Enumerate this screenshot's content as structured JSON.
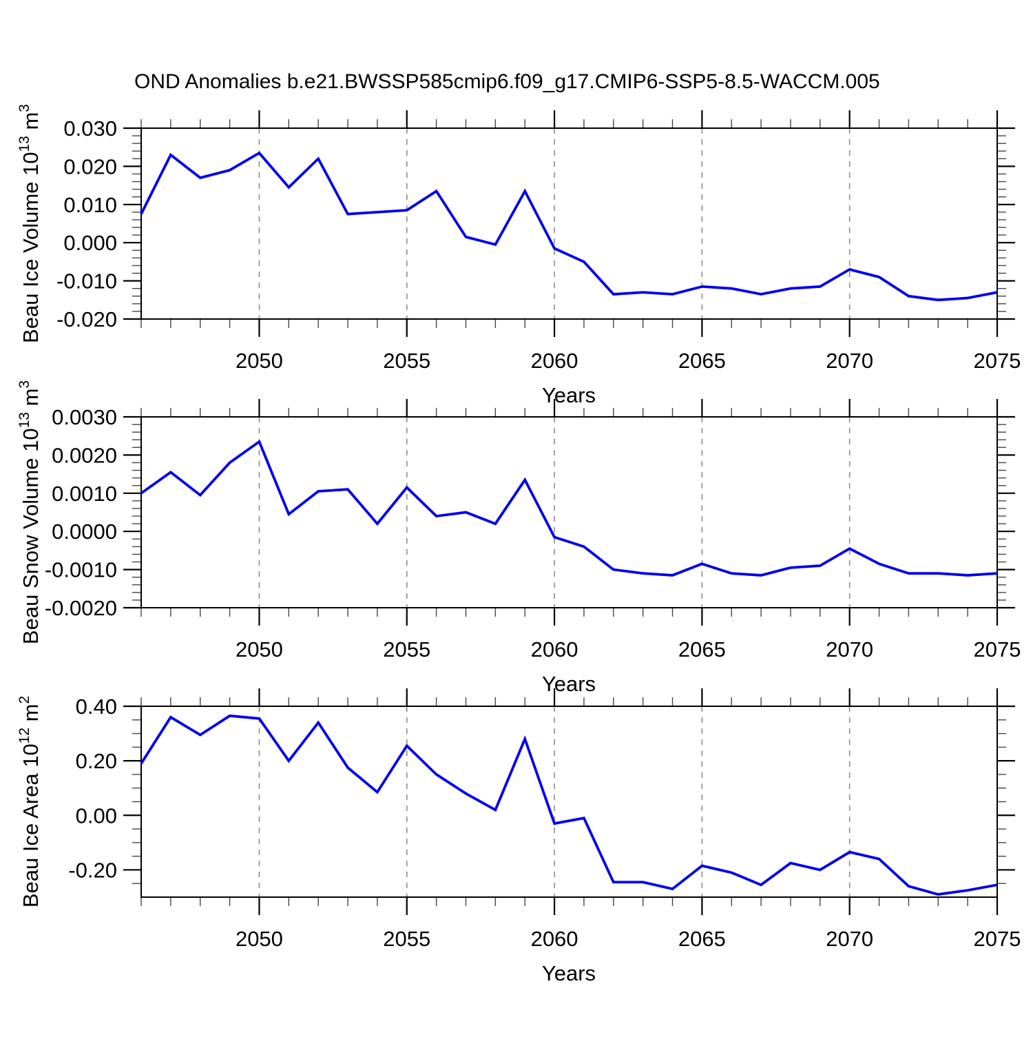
{
  "title": "OND Anomalies b.e21.BWSSP585cmip6.f09_g17.CMIP6-SSP5-8.5-WACCM.005",
  "x_axis": {
    "label": "Years",
    "start": 2046,
    "end": 2075,
    "years": [
      2046,
      2047,
      2048,
      2049,
      2050,
      2051,
      2052,
      2053,
      2054,
      2055,
      2056,
      2057,
      2058,
      2059,
      2060,
      2061,
      2062,
      2063,
      2064,
      2065,
      2066,
      2067,
      2068,
      2069,
      2070,
      2071,
      2072,
      2073,
      2074,
      2075
    ],
    "major_ticks": [
      2050,
      2055,
      2060,
      2065,
      2070,
      2075
    ],
    "tick_labels": [
      "2050",
      "2055",
      "2060",
      "2065",
      "2070",
      "2075"
    ],
    "gridline_years": [
      2050,
      2055,
      2060,
      2065,
      2070
    ],
    "minor_step": 1
  },
  "style": {
    "line_color": "#0000ee",
    "grid_color": "#8c8c8c",
    "axis_color": "#000000",
    "minor_tick_color": "#444444"
  },
  "chart_data": [
    {
      "type": "line",
      "series_name": "Beau Ice Volume",
      "ylabel_parts": [
        {
          "t": "Beau Ice Volume 10"
        },
        {
          "t": "13",
          "sup": true
        },
        {
          "t": " m"
        },
        {
          "t": "3",
          "sup": true
        }
      ],
      "ylim": [
        -0.02,
        0.03
      ],
      "ymajor": [
        0.03,
        0.02,
        0.01,
        0.0,
        -0.01,
        -0.02
      ],
      "ytick_labels": [
        "0.030",
        "0.020",
        "0.010",
        "0.000",
        "-0.010",
        "-0.020"
      ],
      "yminor_step": 0.002,
      "values": [
        0.0075,
        0.023,
        0.017,
        0.019,
        0.0235,
        0.0145,
        0.022,
        0.0075,
        0.008,
        0.0085,
        0.0135,
        0.0015,
        -0.0005,
        0.0135,
        -0.0015,
        -0.005,
        -0.0135,
        -0.013,
        -0.0135,
        -0.0115,
        -0.012,
        -0.0135,
        -0.012,
        -0.0115,
        -0.007,
        -0.009,
        -0.014,
        -0.015,
        -0.0145,
        -0.013
      ]
    },
    {
      "type": "line",
      "series_name": "Beau Snow Volume",
      "ylabel_parts": [
        {
          "t": "Beau Snow Volume 10"
        },
        {
          "t": "13",
          "sup": true
        },
        {
          "t": " m"
        },
        {
          "t": "3",
          "sup": true
        }
      ],
      "ylim": [
        -0.002,
        0.003
      ],
      "ymajor": [
        0.003,
        0.002,
        0.001,
        0.0,
        -0.001,
        -0.002
      ],
      "ytick_labels": [
        "0.0030",
        "0.0020",
        "0.0010",
        "0.0000",
        "-0.0010",
        "-0.0020"
      ],
      "yminor_step": 0.0002,
      "values": [
        0.001,
        0.00155,
        0.00095,
        0.0018,
        0.00235,
        0.00045,
        0.00105,
        0.0011,
        0.0002,
        0.00115,
        0.0004,
        0.0005,
        0.0002,
        0.00135,
        -0.00015,
        -0.0004,
        -0.001,
        -0.0011,
        -0.00115,
        -0.00085,
        -0.0011,
        -0.00115,
        -0.00095,
        -0.0009,
        -0.00045,
        -0.00085,
        -0.0011,
        -0.0011,
        -0.00115,
        -0.0011
      ]
    },
    {
      "type": "line",
      "series_name": "Beau Ice Area",
      "ylabel_parts": [
        {
          "t": "Beau Ice Area 10"
        },
        {
          "t": "12",
          "sup": true
        },
        {
          "t": " m"
        },
        {
          "t": "2",
          "sup": true
        }
      ],
      "ylim": [
        -0.3,
        0.4
      ],
      "ymajor": [
        0.4,
        0.2,
        0.0,
        -0.2
      ],
      "ytick_labels": [
        "0.40",
        "0.20",
        "0.00",
        "-0.20"
      ],
      "yminor_step": 0.05,
      "values": [
        0.19,
        0.36,
        0.295,
        0.365,
        0.355,
        0.2,
        0.34,
        0.175,
        0.085,
        0.255,
        0.15,
        0.08,
        0.02,
        0.28,
        -0.03,
        -0.01,
        -0.245,
        -0.245,
        -0.27,
        -0.185,
        -0.21,
        -0.255,
        -0.175,
        -0.2,
        -0.135,
        -0.16,
        -0.26,
        -0.29,
        -0.275,
        -0.255
      ]
    }
  ]
}
